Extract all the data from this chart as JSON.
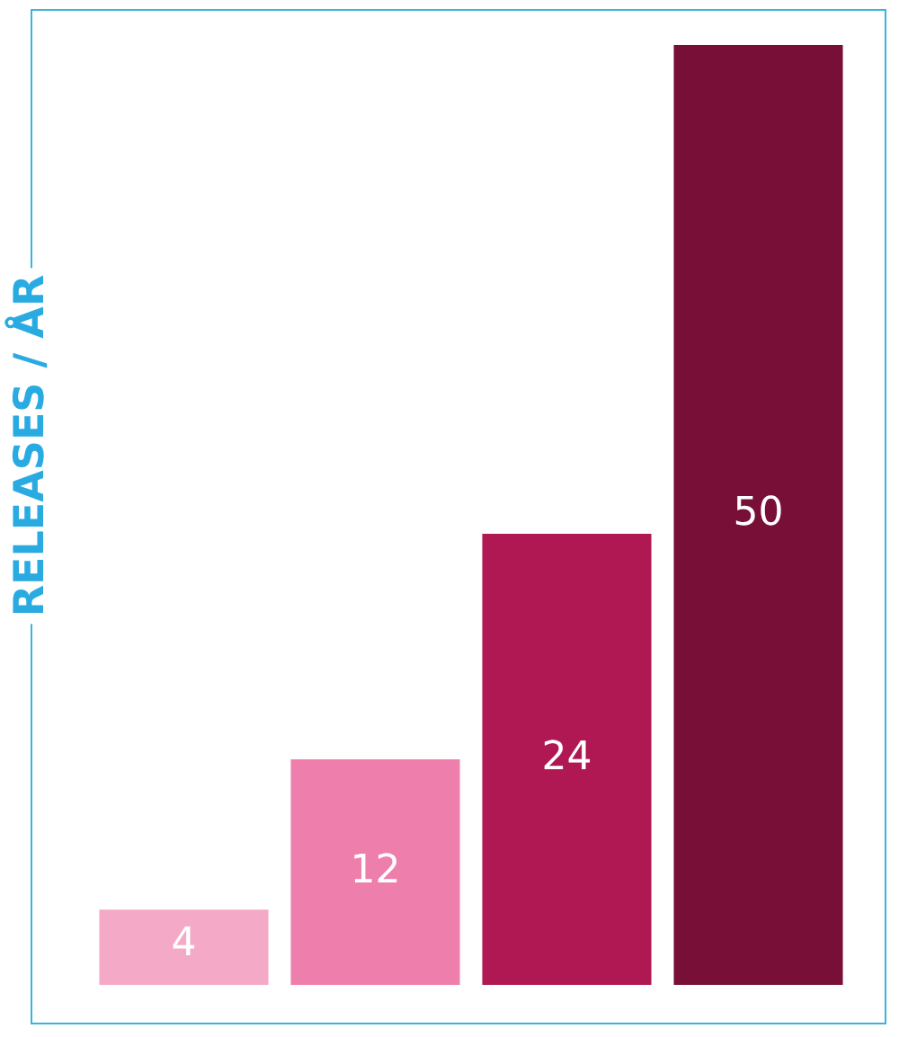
{
  "chart_data": {
    "type": "bar",
    "ylabel": "RELEASES / ÅR",
    "categories": [
      null,
      null,
      null,
      null
    ],
    "values": [
      4,
      12,
      24,
      50
    ],
    "colors": [
      "#f4a9c6",
      "#ee7fac",
      "#b01854",
      "#780f36"
    ],
    "data_labels": true
  }
}
